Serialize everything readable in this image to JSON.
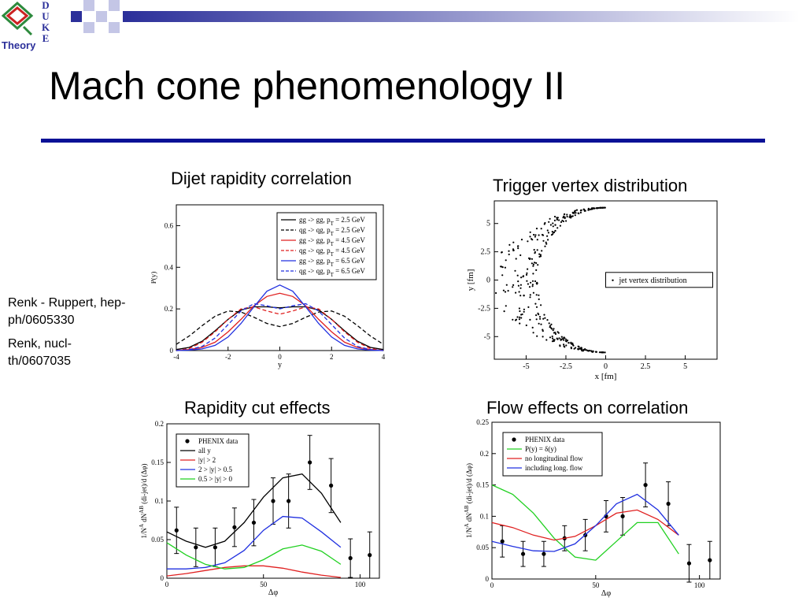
{
  "slide": {
    "title": "Mach cone phenomenology II",
    "references": [
      "Renk - Ruppert, hep-ph/0605330",
      "Renk, nucl-th/0607035"
    ]
  },
  "logo": {
    "letters": [
      "D",
      "U",
      "K",
      "E"
    ],
    "label": "Theory"
  },
  "colors": {
    "accent": "#0a1196",
    "deco_dark": "#2b2f9a",
    "deco_light": "#c4c6e6",
    "logo_red": "#cc2222",
    "logo_green": "#2d8a3d"
  },
  "captions": {
    "top_left": "Dijet rapidity correlation",
    "top_right": "Trigger vertex distribution",
    "bottom_left": "Rapidity cut effects",
    "bottom_right": "Flow effects on correlation"
  },
  "chart_data": [
    {
      "id": "dijet",
      "type": "line",
      "xlabel": "y",
      "ylabel": "P(y)",
      "xlim": [
        -4,
        4
      ],
      "ylim": [
        0,
        0.7
      ],
      "xticks": [
        "-4",
        "-2",
        "0",
        "2",
        "4"
      ],
      "yticks": [
        "0",
        "0.2",
        "0.4",
        "0.6"
      ],
      "legend_placement": "top-right",
      "series": [
        {
          "name": "gg -> gg, p_T = 2.5 GeV",
          "color": "#000000",
          "dash": false,
          "x": [
            -4,
            -3.5,
            -3,
            -2.5,
            -2,
            -1.5,
            -1,
            -0.5,
            0,
            0.5,
            1,
            1.5,
            2,
            2.5,
            3,
            3.5,
            4
          ],
          "y": [
            0.005,
            0.015,
            0.045,
            0.095,
            0.15,
            0.195,
            0.21,
            0.21,
            0.205,
            0.21,
            0.21,
            0.195,
            0.15,
            0.095,
            0.045,
            0.015,
            0.005
          ]
        },
        {
          "name": "qg -> qg, p_T = 2.5 GeV",
          "color": "#000000",
          "dash": true,
          "x": [
            -4,
            -3.5,
            -3,
            -2.5,
            -2,
            -1.5,
            -1,
            -0.5,
            0,
            0.5,
            1,
            1.5,
            2,
            2.5,
            3,
            3.5,
            4
          ],
          "y": [
            0.03,
            0.07,
            0.12,
            0.165,
            0.19,
            0.185,
            0.16,
            0.13,
            0.115,
            0.13,
            0.16,
            0.185,
            0.19,
            0.165,
            0.12,
            0.07,
            0.03
          ]
        },
        {
          "name": "gg -> gg, p_T = 4.5 GeV",
          "color": "#e02020",
          "dash": false,
          "x": [
            -4,
            -3.5,
            -3,
            -2.5,
            -2,
            -1.5,
            -1,
            -0.5,
            0,
            0.5,
            1,
            1.5,
            2,
            2.5,
            3,
            3.5,
            4
          ],
          "y": [
            0,
            0.005,
            0.015,
            0.04,
            0.09,
            0.15,
            0.215,
            0.26,
            0.275,
            0.26,
            0.215,
            0.15,
            0.09,
            0.04,
            0.015,
            0.005,
            0
          ]
        },
        {
          "name": "qg -> qg, p_T = 4.5 GeV",
          "color": "#e02020",
          "dash": true,
          "x": [
            -4,
            -3.5,
            -3,
            -2.5,
            -2,
            -1.5,
            -1,
            -0.5,
            0,
            0.5,
            1,
            1.5,
            2,
            2.5,
            3,
            3.5,
            4
          ],
          "y": [
            0,
            0.01,
            0.04,
            0.09,
            0.15,
            0.2,
            0.21,
            0.19,
            0.175,
            0.19,
            0.21,
            0.2,
            0.15,
            0.09,
            0.04,
            0.01,
            0
          ]
        },
        {
          "name": "gg -> gg, p_T = 6.5 GeV",
          "color": "#2030e0",
          "dash": false,
          "x": [
            -4,
            -3.5,
            -3,
            -2.5,
            -2,
            -1.5,
            -1,
            -0.5,
            0,
            0.5,
            1,
            1.5,
            2,
            2.5,
            3,
            3.5,
            4
          ],
          "y": [
            0,
            0.002,
            0.008,
            0.025,
            0.065,
            0.13,
            0.21,
            0.285,
            0.315,
            0.285,
            0.21,
            0.13,
            0.065,
            0.025,
            0.008,
            0.002,
            0
          ]
        },
        {
          "name": "qg -> qg, p_T = 6.5 GeV",
          "color": "#2030e0",
          "dash": true,
          "x": [
            -4,
            -3.5,
            -3,
            -2.5,
            -2,
            -1.5,
            -1,
            -0.5,
            0,
            0.5,
            1,
            1.5,
            2,
            2.5,
            3,
            3.5,
            4
          ],
          "y": [
            0,
            0.004,
            0.02,
            0.06,
            0.125,
            0.19,
            0.225,
            0.215,
            0.2,
            0.215,
            0.225,
            0.19,
            0.125,
            0.06,
            0.02,
            0.004,
            0
          ]
        }
      ]
    },
    {
      "id": "vertex",
      "type": "scatter",
      "xlabel": "x [fm]",
      "ylabel": "y [fm]",
      "xlim": [
        -7,
        7
      ],
      "ylim": [
        -7,
        7
      ],
      "xticks": [
        "-5",
        "-2.5",
        "0",
        "2.5",
        "5"
      ],
      "yticks": [
        "5",
        "2.5",
        "0",
        "-2.5",
        "-5"
      ],
      "legend_placement": "right",
      "series": [
        {
          "name": "jet vertex distribution",
          "color": "#000000",
          "points": 340
        }
      ]
    },
    {
      "id": "rapidity",
      "type": "line",
      "xlabel": "Δφ",
      "ylabel": "1/N^A dN^AB (di-jet)/d (Δφ)",
      "xlim": [
        0,
        110
      ],
      "ylim": [
        0,
        0.2
      ],
      "xticks": [
        "0",
        "50",
        "100"
      ],
      "yticks": [
        "0",
        "0.05",
        "0.1",
        "0.15",
        "0.2"
      ],
      "legend_placement": "top-left",
      "series": [
        {
          "name": "PHENIX data",
          "color": "#000000",
          "kind": "points",
          "x": [
            5,
            15,
            25,
            35,
            45,
            55,
            63,
            74,
            85,
            95,
            105
          ],
          "y": [
            0.062,
            0.04,
            0.04,
            0.066,
            0.072,
            0.1,
            0.1,
            0.15,
            0.12,
            0.026,
            0.03
          ],
          "err": [
            0.03,
            0.025,
            0.025,
            0.025,
            0.03,
            0.03,
            0.035,
            0.035,
            0.035,
            0.025,
            0.03
          ]
        },
        {
          "name": "all y",
          "color": "#000000",
          "x": [
            0,
            10,
            20,
            30,
            40,
            50,
            60,
            70,
            80,
            90
          ],
          "y": [
            0.06,
            0.048,
            0.04,
            0.048,
            0.072,
            0.105,
            0.13,
            0.135,
            0.11,
            0.072
          ]
        },
        {
          "name": "|y| > 2",
          "color": "#e02020",
          "x": [
            0,
            10,
            20,
            30,
            40,
            50,
            60,
            70,
            80,
            90
          ],
          "y": [
            0.003,
            0.006,
            0.01,
            0.014,
            0.016,
            0.016,
            0.013,
            0.008,
            0.004,
            0.001
          ]
        },
        {
          "name": "2 > |y| > 0.5",
          "color": "#2030e0",
          "x": [
            0,
            10,
            20,
            30,
            40,
            50,
            60,
            70,
            80,
            90
          ],
          "y": [
            0.012,
            0.012,
            0.014,
            0.02,
            0.036,
            0.062,
            0.08,
            0.078,
            0.06,
            0.04
          ]
        },
        {
          "name": "0.5 > |y| > 0",
          "color": "#20d020",
          "x": [
            0,
            10,
            20,
            30,
            40,
            50,
            60,
            70,
            80,
            90
          ],
          "y": [
            0.046,
            0.03,
            0.018,
            0.012,
            0.014,
            0.024,
            0.038,
            0.043,
            0.035,
            0.018
          ]
        }
      ]
    },
    {
      "id": "flow",
      "type": "line",
      "xlabel": "Δφ",
      "ylabel": "1/N^A dN^AB (di-jet)/d (Δφ)",
      "xlim": [
        0,
        110
      ],
      "ylim": [
        0,
        0.25
      ],
      "xticks": [
        "0",
        "50",
        "100"
      ],
      "yticks": [
        "0",
        "0.05",
        "0.1",
        "0.15",
        "0.2",
        "0.25"
      ],
      "legend_placement": "top-left",
      "series": [
        {
          "name": "PHENIX data",
          "color": "#000000",
          "kind": "points",
          "x": [
            5,
            15,
            25,
            35,
            45,
            55,
            63,
            74,
            85,
            95,
            105
          ],
          "y": [
            0.06,
            0.04,
            0.04,
            0.065,
            0.07,
            0.1,
            0.1,
            0.15,
            0.12,
            0.025,
            0.03
          ],
          "err": [
            0.025,
            0.02,
            0.02,
            0.02,
            0.025,
            0.025,
            0.03,
            0.035,
            0.035,
            0.03,
            0.03
          ]
        },
        {
          "name": "P(y) = δ(y)",
          "color": "#20d020",
          "x": [
            0,
            10,
            20,
            30,
            40,
            50,
            60,
            70,
            80,
            90
          ],
          "y": [
            0.15,
            0.135,
            0.105,
            0.065,
            0.035,
            0.03,
            0.06,
            0.09,
            0.09,
            0.04
          ]
        },
        {
          "name": "no longitudinal flow",
          "color": "#e02020",
          "x": [
            0,
            10,
            20,
            30,
            40,
            50,
            60,
            70,
            80,
            90
          ],
          "y": [
            0.09,
            0.082,
            0.07,
            0.062,
            0.068,
            0.085,
            0.105,
            0.11,
            0.095,
            0.07
          ]
        },
        {
          "name": "including long. flow",
          "color": "#2030e0",
          "x": [
            0,
            10,
            20,
            30,
            40,
            50,
            60,
            70,
            80,
            90
          ],
          "y": [
            0.06,
            0.052,
            0.045,
            0.044,
            0.056,
            0.085,
            0.12,
            0.135,
            0.11,
            0.07
          ]
        }
      ]
    }
  ]
}
